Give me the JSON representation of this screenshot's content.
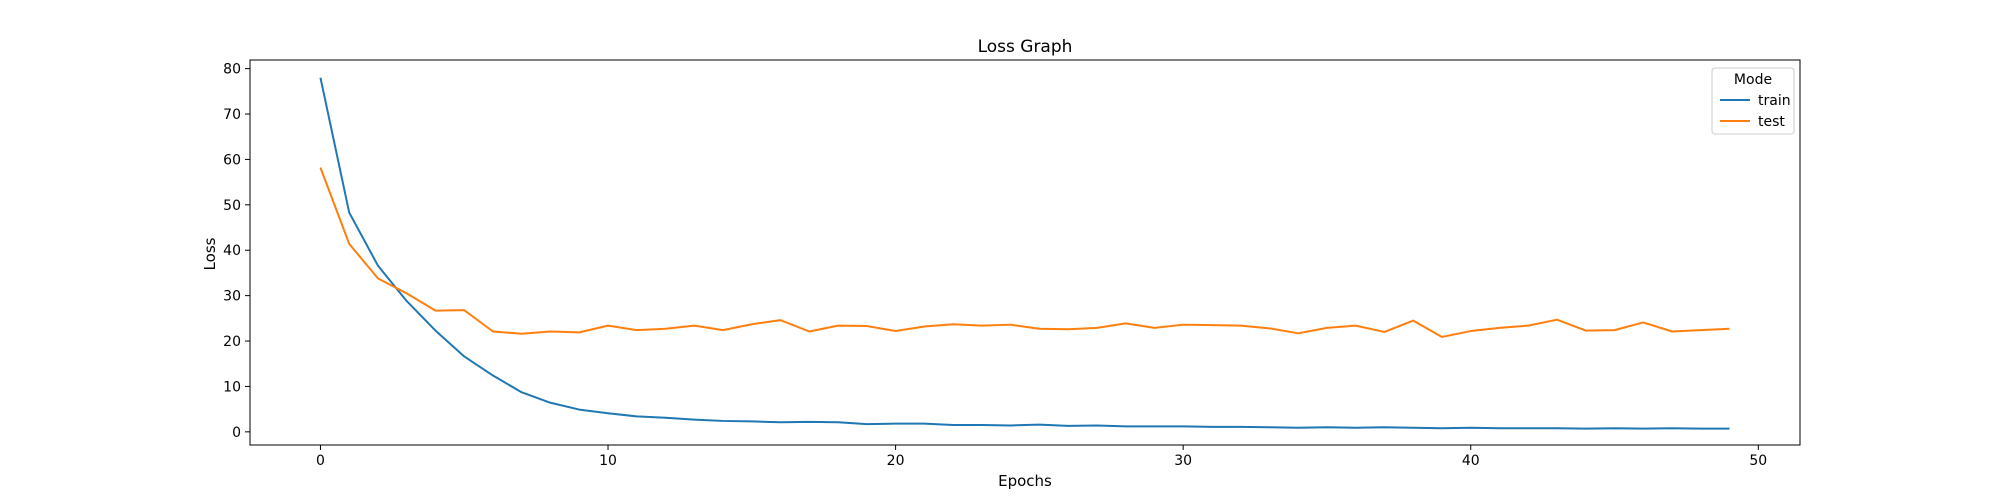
{
  "chart_data": {
    "type": "line",
    "title": "Loss Graph",
    "xlabel": "Epochs",
    "ylabel": "Loss",
    "xlim": [
      -2.45,
      51.45
    ],
    "ylim": [
      -2.9,
      81.9
    ],
    "x_ticks": [
      0,
      10,
      20,
      30,
      40,
      50
    ],
    "y_ticks": [
      0,
      10,
      20,
      30,
      40,
      50,
      60,
      70,
      80
    ],
    "grid": false,
    "legend": {
      "title": "Mode",
      "placement": "top-right"
    },
    "x": [
      0,
      1,
      2,
      3,
      4,
      5,
      6,
      7,
      8,
      9,
      10,
      11,
      12,
      13,
      14,
      15,
      16,
      17,
      18,
      19,
      20,
      21,
      22,
      23,
      24,
      25,
      26,
      27,
      28,
      29,
      30,
      31,
      32,
      33,
      34,
      35,
      36,
      37,
      38,
      39,
      40,
      41,
      42,
      43,
      44,
      45,
      46,
      47,
      48,
      49
    ],
    "series": [
      {
        "name": "train",
        "color": "#1f77b4",
        "values": [
          78.0,
          48.3,
          36.6,
          28.8,
          22.3,
          16.6,
          12.4,
          8.7,
          6.4,
          4.9,
          4.1,
          3.4,
          3.1,
          2.7,
          2.4,
          2.3,
          2.1,
          2.2,
          2.1,
          1.7,
          1.8,
          1.8,
          1.5,
          1.5,
          1.4,
          1.6,
          1.3,
          1.4,
          1.2,
          1.2,
          1.2,
          1.1,
          1.1,
          1.0,
          0.9,
          1.0,
          0.9,
          1.0,
          0.9,
          0.8,
          0.9,
          0.8,
          0.8,
          0.8,
          0.7,
          0.8,
          0.7,
          0.8,
          0.7,
          0.7
        ]
      },
      {
        "name": "test",
        "color": "#ff7f0e",
        "values": [
          58.2,
          41.4,
          33.8,
          30.5,
          26.7,
          26.8,
          22.1,
          21.6,
          22.1,
          21.9,
          23.4,
          22.4,
          22.7,
          23.4,
          22.4,
          23.7,
          24.6,
          22.1,
          23.4,
          23.3,
          22.2,
          23.2,
          23.7,
          23.4,
          23.6,
          22.7,
          22.6,
          22.9,
          23.9,
          22.9,
          23.6,
          23.5,
          23.4,
          22.8,
          21.7,
          22.9,
          23.4,
          22.0,
          24.5,
          20.9,
          22.2,
          22.9,
          23.4,
          24.7,
          22.3,
          22.4,
          24.1,
          22.1,
          22.4,
          22.7
        ]
      }
    ]
  }
}
